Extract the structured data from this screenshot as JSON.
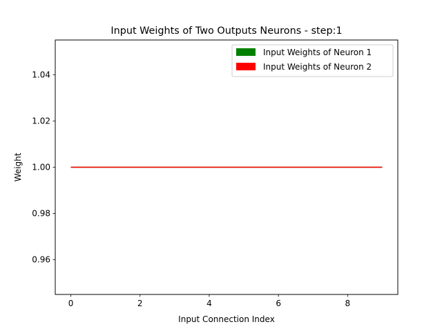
{
  "chart_data": {
    "type": "line",
    "title": "Input Weights of Two Outputs Neurons - step:1",
    "xlabel": "Input Connection Index",
    "ylabel": "Weight",
    "x": [
      0,
      1,
      2,
      3,
      4,
      5,
      6,
      7,
      8,
      9
    ],
    "xlim": [
      -0.45,
      9.45
    ],
    "ylim": [
      0.945,
      1.055
    ],
    "xticks": [
      0,
      2,
      4,
      6,
      8
    ],
    "yticks": [
      0.96,
      0.98,
      1.0,
      1.02,
      1.04
    ],
    "xtick_labels": [
      "0",
      "2",
      "4",
      "6",
      "8"
    ],
    "ytick_labels": [
      "0.96",
      "0.98",
      "1.00",
      "1.02",
      "1.04"
    ],
    "grid": false,
    "legend_position": "top-right",
    "series": [
      {
        "name": "Input Weights of Neuron 1",
        "color": "#008000",
        "values": [
          1,
          1,
          1,
          1,
          1,
          1,
          1,
          1,
          1,
          1
        ]
      },
      {
        "name": "Input Weights of Neuron 2",
        "color": "#ff0000",
        "values": [
          1,
          1,
          1,
          1,
          1,
          1,
          1,
          1,
          1,
          1
        ]
      }
    ]
  }
}
